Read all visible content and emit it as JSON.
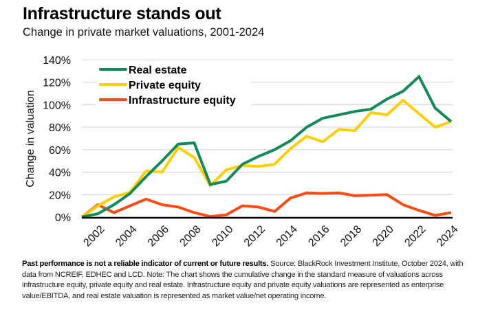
{
  "header": {
    "title": "Infrastructure stands out",
    "subtitle": "Change in private market valuations, 2001-2024"
  },
  "footnote": {
    "bold": "Past performance is not a reliable indicator of current or future results.",
    "text": " Source: BlackRock Investment Institute, October 2024, with data from NCREIF, EDHEC and LCD. Note: The chart shows the cumulative change in the standard measure of valuations across infrastructure equity, private equity and real estate. Infrastructure equity and private equity valuations are represented as enterprise value/EBITDA, and real estate valuation is represented as market value/net operating income."
  },
  "chart_data": {
    "type": "line",
    "title": "Infrastructure stands out",
    "subtitle": "Change in private market valuations, 2001-2024",
    "xlabel": "",
    "ylabel": "Change in valuation",
    "x": [
      2001,
      2002,
      2003,
      2004,
      2005,
      2006,
      2007,
      2008,
      2009,
      2010,
      2011,
      2012,
      2013,
      2014,
      2015,
      2016,
      2017,
      2018,
      2019,
      2020,
      2021,
      2022,
      2023,
      2024
    ],
    "xlim": [
      2001,
      2024
    ],
    "x_ticks": [
      2002,
      2004,
      2006,
      2008,
      2010,
      2012,
      2014,
      2016,
      2018,
      2020,
      2022,
      2024
    ],
    "ylim": [
      0,
      140
    ],
    "y_ticks": [
      0,
      20,
      40,
      60,
      80,
      100,
      120,
      140
    ],
    "y_tick_labels": [
      "0%",
      "20%",
      "40%",
      "60%",
      "80%",
      "100%",
      "120%",
      "140%"
    ],
    "y_unit": "%",
    "grid": "horizontal",
    "legend_position": "top-left",
    "series": [
      {
        "name": "Real estate",
        "color": "#128a5a",
        "values": [
          0,
          3,
          11,
          21,
          36,
          50,
          65,
          66,
          29,
          32,
          47,
          54,
          60,
          68,
          80,
          88,
          91,
          94,
          96,
          105,
          112,
          125,
          97,
          85
        ]
      },
      {
        "name": "Private equity",
        "color": "#ffcf00",
        "values": [
          0,
          10,
          18,
          22,
          41,
          40,
          62,
          53,
          28,
          42,
          46,
          45,
          47,
          61,
          72,
          67,
          78,
          77,
          93,
          91,
          104,
          92,
          80,
          85
        ]
      },
      {
        "name": "Infrastructure equity",
        "color": "#ff4c17",
        "values": [
          0,
          11,
          4,
          10,
          16,
          11,
          9,
          4,
          0.5,
          2,
          10,
          9,
          5,
          17,
          21.5,
          21,
          21.5,
          19,
          19.5,
          20,
          11,
          6,
          1.5,
          4
        ]
      }
    ]
  }
}
